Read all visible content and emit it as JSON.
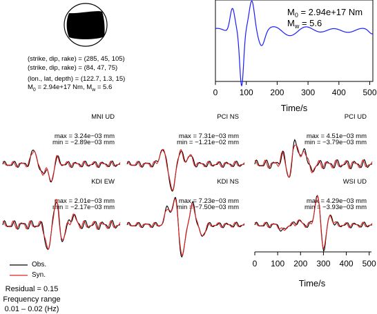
{
  "mechanism": {
    "lines": [
      "(strike, dip, rake) = (285, 45, 105)",
      "(strike, dip, rake) = (84, 47, 75)",
      "(lon., lat, depth) = (122.7, 1.3, 15)"
    ],
    "moment_line": {
      "prefix": "M",
      "sub": "0",
      "text1": " = 2.94e+17 Nm, M",
      "sub2": "w",
      "text2": " = 5.6"
    }
  },
  "stf": {
    "m0_prefix": "M",
    "m0_sub": "0",
    "m0_value": " = 2.94e+17 Nm",
    "mw_prefix": "M",
    "mw_sub": "w",
    "mw_value": " = 5.6",
    "xlabel": "Time/s",
    "xticks": [
      "0",
      "100",
      "200",
      "300",
      "400",
      "500"
    ],
    "xlim": [
      0,
      510
    ],
    "color": "#1a1aff"
  },
  "waveform_axis": {
    "xlabel": "Time/s",
    "xticks": [
      "0",
      "100",
      "200",
      "300",
      "400",
      "500"
    ],
    "xlim": [
      0,
      510
    ]
  },
  "legend": {
    "obs_label": "Obs.",
    "syn_label": "Syn.",
    "obs_color": "#000000",
    "syn_color": "#e0201e"
  },
  "notes": {
    "residual": "Residual = 0.15",
    "freq_title": "Frequency range",
    "freq_range": "0.01 – 0.02 (Hz)"
  },
  "chart_data": {
    "type": "line",
    "stations": [
      {
        "name": "MNI UD",
        "max": "max = 3.24e−03 mm",
        "min": "min = −2.89e−03 mm"
      },
      {
        "name": "PCI NS",
        "max": "max = 7.31e−03 mm",
        "min": "min = −1.21e−02 mm"
      },
      {
        "name": "PCI UD",
        "max": "max = 4.51e−03 mm",
        "min": "min = −3.79e−03 mm"
      },
      {
        "name": "KDI EW",
        "max": "max = 2.01e−03 mm",
        "min": "min = −2.17e−03 mm"
      },
      {
        "name": "KDI NS",
        "max": "max = 7.23e−03 mm",
        "min": "min = −7.50e−03 mm"
      },
      {
        "name": "WSI UD",
        "max": "max = 4.29e−03 mm",
        "min": "min = −3.93e−03 mm"
      }
    ]
  }
}
